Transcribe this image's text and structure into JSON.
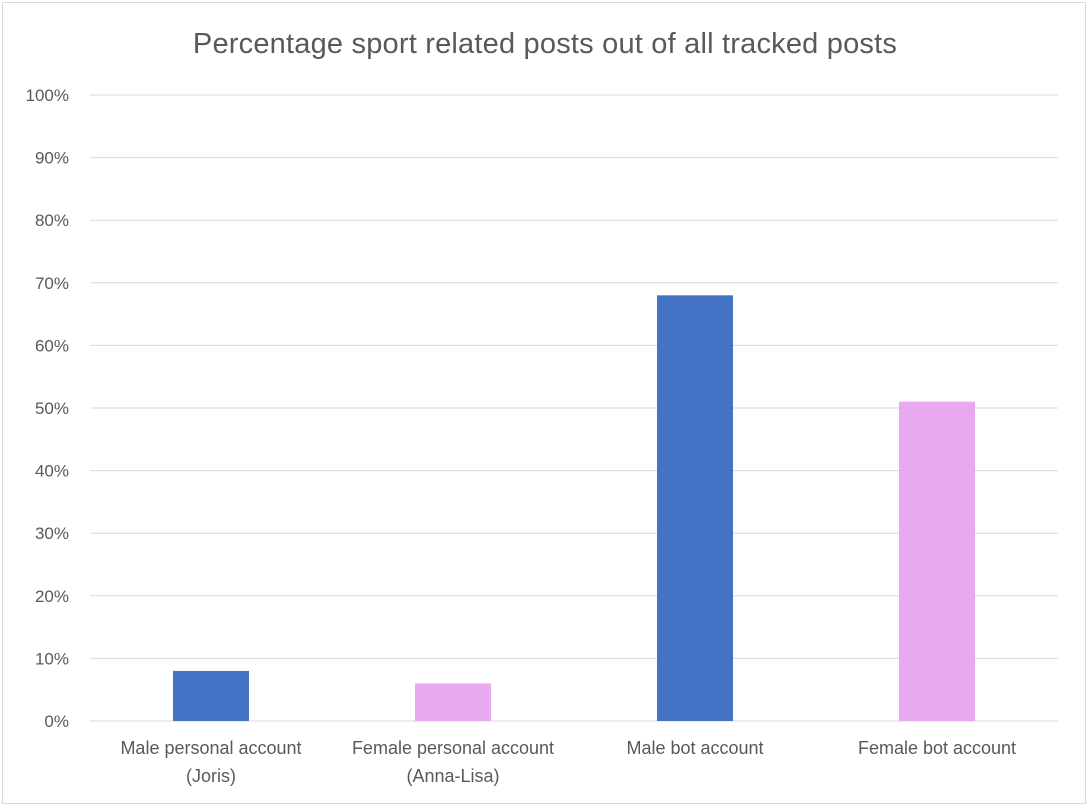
{
  "chart_data": {
    "type": "bar",
    "title": "Percentage sport related posts out of all tracked posts",
    "categories": [
      [
        "Male personal account",
        "(Joris)"
      ],
      [
        "Female personal account",
        "(Anna-Lisa)"
      ],
      [
        "Male bot account"
      ],
      [
        "Female bot account"
      ]
    ],
    "values": [
      0.08,
      0.06,
      0.68,
      0.51
    ],
    "bar_colors": [
      "#4472c4",
      "#e8a9ee",
      "#4472c4",
      "#e8a9ee"
    ],
    "ylim": [
      0,
      1
    ],
    "yticks": [
      "0%",
      "10%",
      "20%",
      "30%",
      "40%",
      "50%",
      "60%",
      "70%",
      "80%",
      "90%",
      "100%"
    ],
    "xlabel": "",
    "ylabel": "",
    "grid": true,
    "legend": "none"
  }
}
